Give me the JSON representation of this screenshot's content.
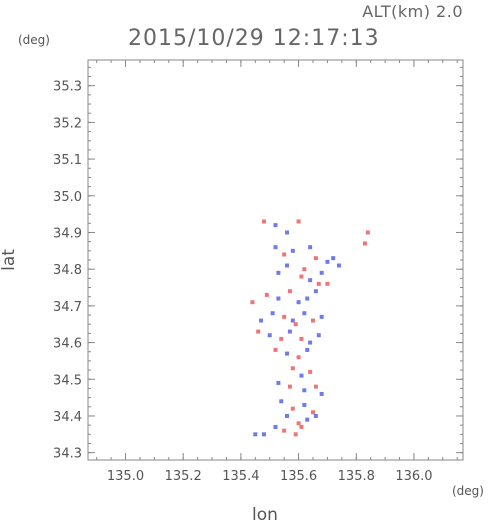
{
  "header": {
    "altitude": "ALT(km) 2.0",
    "timestamp": "2015/10/29 12:17:13"
  },
  "chart_data": {
    "type": "heatmap",
    "title": "2015/10/29 12:17:13",
    "xlabel": "lon",
    "ylabel": "lat",
    "x_unit": "(deg)",
    "y_unit": "(deg)",
    "xlim": [
      134.87,
      136.17
    ],
    "ylim": [
      34.28,
      35.37
    ],
    "x_ticks": [
      135.0,
      135.2,
      135.4,
      135.6,
      135.8,
      136.0
    ],
    "x_tick_labels": [
      "135.0",
      "135.2",
      "135.4",
      "135.6",
      "135.8",
      "136.0"
    ],
    "y_ticks": [
      34.3,
      34.4,
      34.5,
      34.6,
      34.7,
      34.8,
      34.9,
      35.0,
      35.1,
      35.2,
      35.3
    ],
    "y_tick_labels": [
      "34.3",
      "34.4",
      "34.5",
      "34.6",
      "34.7",
      "34.8",
      "34.9",
      "35.0",
      "35.1",
      "35.2",
      "35.3"
    ],
    "grid": false,
    "colors": {
      "positive": "#e8474a",
      "negative": "#3f4fe0",
      "frame": "#888888"
    },
    "cells": [
      [
        135.48,
        34.93,
        1
      ],
      [
        135.52,
        34.92,
        -1
      ],
      [
        135.56,
        34.9,
        -1
      ],
      [
        135.6,
        34.93,
        1
      ],
      [
        135.84,
        34.9,
        1
      ],
      [
        135.83,
        34.87,
        1
      ],
      [
        135.52,
        34.86,
        -1
      ],
      [
        135.55,
        34.84,
        1
      ],
      [
        135.58,
        34.85,
        -1
      ],
      [
        135.64,
        34.86,
        -1
      ],
      [
        135.66,
        34.83,
        1
      ],
      [
        135.7,
        34.82,
        -1
      ],
      [
        135.72,
        34.83,
        -1
      ],
      [
        135.74,
        34.81,
        -1
      ],
      [
        135.62,
        34.8,
        1
      ],
      [
        135.61,
        34.78,
        1
      ],
      [
        135.64,
        34.77,
        -1
      ],
      [
        135.68,
        34.79,
        -1
      ],
      [
        135.7,
        34.76,
        1
      ],
      [
        135.53,
        34.79,
        -1
      ],
      [
        135.56,
        34.81,
        -1
      ],
      [
        135.49,
        34.73,
        1
      ],
      [
        135.53,
        34.72,
        -1
      ],
      [
        135.57,
        34.74,
        1
      ],
      [
        135.6,
        34.71,
        -1
      ],
      [
        135.63,
        34.72,
        -1
      ],
      [
        135.66,
        34.74,
        -1
      ],
      [
        135.51,
        34.68,
        -1
      ],
      [
        135.55,
        34.67,
        1
      ],
      [
        135.58,
        34.66,
        -1
      ],
      [
        135.62,
        34.68,
        -1
      ],
      [
        135.65,
        34.66,
        1
      ],
      [
        135.68,
        34.67,
        -1
      ],
      [
        135.47,
        34.66,
        -1
      ],
      [
        135.46,
        34.63,
        1
      ],
      [
        135.5,
        34.62,
        -1
      ],
      [
        135.54,
        34.61,
        1
      ],
      [
        135.57,
        34.63,
        -1
      ],
      [
        135.61,
        34.61,
        1
      ],
      [
        135.64,
        34.6,
        -1
      ],
      [
        135.67,
        34.62,
        -1
      ],
      [
        135.52,
        34.58,
        1
      ],
      [
        135.56,
        34.57,
        -1
      ],
      [
        135.6,
        34.56,
        1
      ],
      [
        135.63,
        34.58,
        -1
      ],
      [
        135.58,
        34.53,
        1
      ],
      [
        135.61,
        34.51,
        -1
      ],
      [
        135.64,
        34.52,
        1
      ],
      [
        135.53,
        34.49,
        -1
      ],
      [
        135.57,
        34.48,
        1
      ],
      [
        135.62,
        34.47,
        -1
      ],
      [
        135.66,
        34.48,
        1
      ],
      [
        135.68,
        34.46,
        -1
      ],
      [
        135.54,
        34.44,
        -1
      ],
      [
        135.58,
        34.42,
        1
      ],
      [
        135.62,
        34.43,
        -1
      ],
      [
        135.65,
        34.41,
        1
      ],
      [
        135.56,
        34.4,
        -1
      ],
      [
        135.6,
        34.38,
        1
      ],
      [
        135.63,
        34.39,
        -1
      ],
      [
        135.66,
        34.4,
        -1
      ],
      [
        135.52,
        34.37,
        -1
      ],
      [
        135.55,
        34.36,
        1
      ],
      [
        135.45,
        34.35,
        -1
      ],
      [
        135.48,
        34.35,
        -1
      ],
      [
        135.59,
        34.35,
        1
      ],
      [
        135.61,
        34.37,
        1
      ],
      [
        135.44,
        34.71,
        1
      ],
      [
        135.67,
        34.76,
        1
      ],
      [
        135.59,
        34.65,
        1
      ]
    ]
  }
}
